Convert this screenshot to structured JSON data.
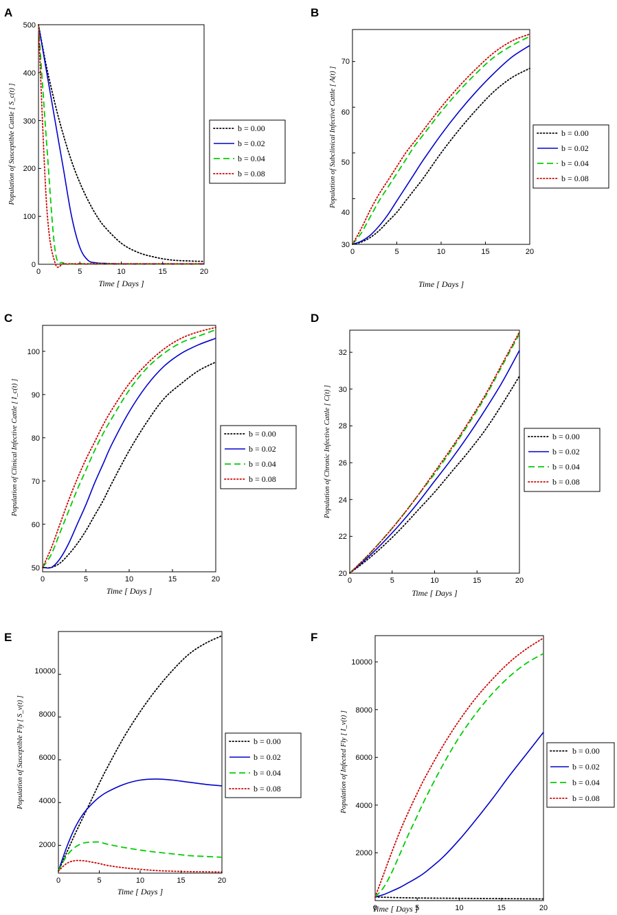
{
  "figure": {
    "legend_entries": [
      "b = 0.00",
      "b = 0.02",
      "b = 0.04",
      "b = 0.08"
    ],
    "series_styles": [
      {
        "name": "b = 0.00",
        "color": "#000000",
        "dash": "dotted"
      },
      {
        "name": "b = 0.02",
        "color": "#0000cc",
        "dash": "solid"
      },
      {
        "name": "b = 0.04",
        "color": "#00cc00",
        "dash": "dashed"
      },
      {
        "name": "b = 0.08",
        "color": "#cc0000",
        "dash": "dotted"
      }
    ]
  },
  "chart_data": [
    {
      "panel": "A",
      "type": "line",
      "title": "",
      "xlabel": "Time [ Days ]",
      "ylabel": "Population of Susceptible Cattle [ S_c(t) ]",
      "xlim": [
        0,
        20
      ],
      "ylim": [
        0,
        500
      ],
      "xticks": [
        0,
        5,
        10,
        15,
        20
      ],
      "yticks": [
        0,
        100,
        200,
        300,
        400,
        500
      ],
      "x": [
        0,
        1,
        2,
        3,
        4,
        5,
        6,
        7,
        8,
        10,
        12,
        14,
        16,
        18,
        20
      ],
      "series": [
        {
          "name": "b = 0.00",
          "values": [
            500,
            410,
            335,
            270,
            215,
            170,
            133,
            102,
            78,
            44,
            25,
            15,
            9,
            7,
            6
          ]
        },
        {
          "name": "b = 0.02",
          "values": [
            500,
            400,
            300,
            200,
            100,
            35,
            8,
            3,
            2,
            1,
            1,
            1,
            1,
            1,
            1
          ]
        },
        {
          "name": "b = 0.04",
          "values": [
            500,
            250,
            30,
            3,
            1,
            1,
            1,
            1,
            1,
            1,
            1,
            1,
            1,
            1,
            1
          ]
        },
        {
          "name": "b = 0.08",
          "values": [
            500,
            120,
            3,
            1,
            1,
            1,
            1,
            1,
            1,
            1,
            1,
            1,
            1,
            1,
            1
          ]
        }
      ]
    },
    {
      "panel": "B",
      "type": "line",
      "title": "",
      "xlabel": "Time [ Days ]",
      "ylabel": "Population of Subclinical Infective Cattle [ A(t) ]",
      "xlim": [
        0,
        20
      ],
      "ylim": [
        30,
        77
      ],
      "xticks": [
        0,
        5,
        10,
        15,
        20
      ],
      "yticks": [
        30,
        40,
        50,
        60,
        70
      ],
      "x": [
        0,
        1,
        2,
        3,
        4,
        5,
        6,
        7,
        8,
        10,
        12,
        14,
        16,
        18,
        20
      ],
      "series": [
        {
          "name": "b = 0.00",
          "values": [
            30,
            30.5,
            31.5,
            33,
            35,
            37,
            39.5,
            42,
            44.5,
            50,
            55,
            59.5,
            63.5,
            66.5,
            68.5
          ]
        },
        {
          "name": "b = 0.02",
          "values": [
            30,
            30.7,
            32,
            34,
            36.5,
            39.5,
            42.5,
            45.5,
            48.5,
            54,
            59,
            63.5,
            67.5,
            71,
            73.5
          ]
        },
        {
          "name": "b = 0.04",
          "values": [
            30,
            32.5,
            36,
            39.5,
            42.5,
            45.5,
            48.5,
            51.5,
            54,
            59,
            63.5,
            67.5,
            71,
            73.5,
            75.5
          ]
        },
        {
          "name": "b = 0.08",
          "values": [
            30,
            33.5,
            37.5,
            41,
            44,
            47,
            50,
            52.5,
            55,
            60,
            64.5,
            68.5,
            72,
            74.5,
            76
          ]
        }
      ]
    },
    {
      "panel": "C",
      "type": "line",
      "title": "",
      "xlabel": "Time [ Days ]",
      "ylabel": "Population of Clinical Infective Cattle [ I_c(t) ]",
      "xlim": [
        0,
        20
      ],
      "ylim": [
        49,
        106
      ],
      "xticks": [
        0,
        5,
        10,
        15,
        20
      ],
      "yticks": [
        50,
        60,
        70,
        80,
        90,
        100
      ],
      "x": [
        0,
        1,
        2,
        3,
        4,
        5,
        6,
        7,
        8,
        10,
        12,
        14,
        16,
        18,
        20
      ],
      "series": [
        {
          "name": "b = 0.00",
          "values": [
            50,
            50,
            51,
            53,
            55.5,
            58.5,
            62,
            65.5,
            69.5,
            77,
            83.5,
            89,
            92.5,
            95.5,
            97.5
          ]
        },
        {
          "name": "b = 0.02",
          "values": [
            50,
            50,
            52,
            55.5,
            60,
            64.5,
            69.5,
            74,
            78.5,
            86,
            92,
            96.5,
            99.5,
            101.5,
            103
          ]
        },
        {
          "name": "b = 0.04",
          "values": [
            50,
            53,
            58,
            63,
            68,
            72.5,
            77,
            81,
            84.5,
            91,
            96,
            99.5,
            102,
            103.5,
            105
          ]
        },
        {
          "name": "b = 0.08",
          "values": [
            50,
            54.5,
            60,
            65.5,
            70.5,
            75,
            79,
            83,
            86.5,
            92.5,
            97,
            100.5,
            103,
            104.5,
            105.5
          ]
        }
      ]
    },
    {
      "panel": "D",
      "type": "line",
      "title": "",
      "xlabel": "Time [ Days ]",
      "ylabel": "Population of Chronic Infective Cattle [ C(t) ]",
      "xlim": [
        0,
        20
      ],
      "ylim": [
        20,
        33.2
      ],
      "xticks": [
        0,
        5,
        10,
        15,
        20
      ],
      "yticks": [
        20,
        22,
        24,
        26,
        28,
        30,
        32
      ],
      "x": [
        0,
        2,
        4,
        6,
        8,
        10,
        12,
        14,
        16,
        18,
        20
      ],
      "series": [
        {
          "name": "b = 0.00",
          "values": [
            20,
            20.7,
            21.5,
            22.4,
            23.4,
            24.4,
            25.5,
            26.6,
            27.8,
            29.2,
            30.7
          ]
        },
        {
          "name": "b = 0.02",
          "values": [
            20,
            20.8,
            21.7,
            22.7,
            23.8,
            25,
            26.2,
            27.5,
            28.9,
            30.4,
            32.1
          ]
        },
        {
          "name": "b = 0.04",
          "values": [
            20,
            20.9,
            21.9,
            23,
            24.2,
            25.4,
            26.7,
            28.1,
            29.6,
            31.3,
            33
          ]
        },
        {
          "name": "b = 0.08",
          "values": [
            20,
            20.9,
            21.9,
            23,
            24.2,
            25.5,
            26.8,
            28.2,
            29.7,
            31.4,
            33.1
          ]
        }
      ]
    },
    {
      "panel": "E",
      "type": "line",
      "title": "",
      "xlabel": "Time [ Days ]",
      "ylabel": "Population of Susceptible Fly [ S_v(t) ]",
      "xlim": [
        0,
        20
      ],
      "ylim": [
        700,
        12000
      ],
      "xticks": [
        0,
        5,
        10,
        15,
        20
      ],
      "yticks": [
        2000,
        4000,
        6000,
        8000,
        10000
      ],
      "x": [
        0,
        1,
        2,
        3,
        4,
        5,
        6,
        8,
        10,
        12,
        14,
        16,
        18,
        20
      ],
      "series": [
        {
          "name": "b = 0.00",
          "values": [
            800,
            1650,
            2500,
            3300,
            4100,
            4900,
            5650,
            7050,
            8250,
            9300,
            10200,
            10950,
            11450,
            11800
          ]
        },
        {
          "name": "b = 0.02",
          "values": [
            800,
            1900,
            2800,
            3450,
            3900,
            4250,
            4500,
            4850,
            5050,
            5100,
            5050,
            4950,
            4850,
            4780
          ]
        },
        {
          "name": "b = 0.04",
          "values": [
            800,
            1500,
            1900,
            2100,
            2150,
            2150,
            2050,
            1900,
            1780,
            1680,
            1600,
            1520,
            1480,
            1440
          ]
        },
        {
          "name": "b = 0.08",
          "values": [
            800,
            1150,
            1280,
            1280,
            1220,
            1150,
            1060,
            950,
            880,
            820,
            790,
            770,
            760,
            750
          ]
        }
      ]
    },
    {
      "panel": "F",
      "type": "line",
      "title": "",
      "xlabel": "Time [ Days ]",
      "ylabel": "Population of Infected Fly [ I_v(t) ]",
      "xlim": [
        0,
        20
      ],
      "ylim": [
        0,
        11100
      ],
      "xticks": [
        0,
        5,
        10,
        15,
        20
      ],
      "yticks": [
        2000,
        4000,
        6000,
        8000,
        10000
      ],
      "x": [
        0,
        1,
        2,
        3,
        4,
        5,
        6,
        8,
        10,
        12,
        14,
        16,
        18,
        20
      ],
      "series": [
        {
          "name": "b = 0.00",
          "values": [
            150,
            140,
            130,
            120,
            115,
            110,
            105,
            100,
            95,
            90,
            85,
            80,
            75,
            70
          ]
        },
        {
          "name": "b = 0.02",
          "values": [
            150,
            250,
            400,
            560,
            760,
            960,
            1200,
            1800,
            2550,
            3400,
            4300,
            5250,
            6150,
            7050
          ]
        },
        {
          "name": "b = 0.04",
          "values": [
            150,
            550,
            1200,
            2000,
            2800,
            3550,
            4300,
            5650,
            6850,
            7850,
            8700,
            9400,
            9950,
            10350
          ]
        },
        {
          "name": "b = 0.08",
          "values": [
            150,
            1100,
            2050,
            2950,
            3750,
            4500,
            5200,
            6450,
            7550,
            8500,
            9300,
            10000,
            10550,
            11000
          ]
        }
      ]
    }
  ]
}
